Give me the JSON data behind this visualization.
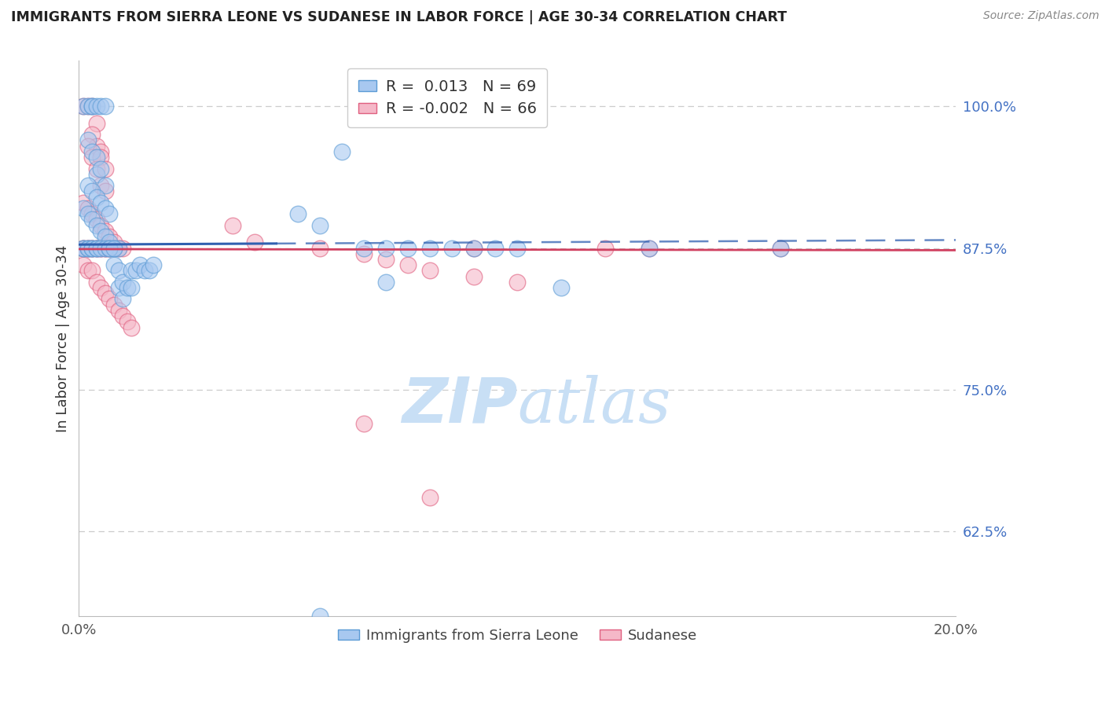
{
  "title": "IMMIGRANTS FROM SIERRA LEONE VS SUDANESE IN LABOR FORCE | AGE 30-34 CORRELATION CHART",
  "source": "Source: ZipAtlas.com",
  "ylabel": "In Labor Force | Age 30-34",
  "xlim": [
    0.0,
    0.2
  ],
  "ylim": [
    0.55,
    1.04
  ],
  "yticks": [
    0.625,
    0.75,
    0.875,
    1.0
  ],
  "ytick_labels": [
    "62.5%",
    "75.0%",
    "87.5%",
    "100.0%"
  ],
  "xtick_labels": [
    "0.0%",
    "20.0%"
  ],
  "xticks": [
    0.0,
    0.2
  ],
  "blue_R": 0.013,
  "blue_N": 69,
  "pink_R": -0.002,
  "pink_N": 66,
  "blue_color": "#a8c8f0",
  "pink_color": "#f5b8c8",
  "blue_edge_color": "#5b9bd5",
  "pink_edge_color": "#e06080",
  "blue_line_color": "#3060b0",
  "pink_line_color": "#d04060",
  "blue_scatter": [
    [
      0.001,
      1.0
    ],
    [
      0.002,
      1.0
    ],
    [
      0.003,
      1.0
    ],
    [
      0.003,
      1.0
    ],
    [
      0.004,
      1.0
    ],
    [
      0.005,
      1.0
    ],
    [
      0.006,
      1.0
    ],
    [
      0.002,
      0.97
    ],
    [
      0.003,
      0.96
    ],
    [
      0.004,
      0.955
    ],
    [
      0.004,
      0.94
    ],
    [
      0.005,
      0.945
    ],
    [
      0.006,
      0.93
    ],
    [
      0.002,
      0.93
    ],
    [
      0.003,
      0.925
    ],
    [
      0.004,
      0.92
    ],
    [
      0.005,
      0.915
    ],
    [
      0.006,
      0.91
    ],
    [
      0.007,
      0.905
    ],
    [
      0.001,
      0.91
    ],
    [
      0.002,
      0.905
    ],
    [
      0.003,
      0.9
    ],
    [
      0.004,
      0.895
    ],
    [
      0.005,
      0.89
    ],
    [
      0.006,
      0.885
    ],
    [
      0.007,
      0.88
    ],
    [
      0.008,
      0.875
    ],
    [
      0.009,
      0.875
    ],
    [
      0.001,
      0.875
    ],
    [
      0.001,
      0.875
    ],
    [
      0.002,
      0.875
    ],
    [
      0.002,
      0.875
    ],
    [
      0.003,
      0.875
    ],
    [
      0.003,
      0.875
    ],
    [
      0.004,
      0.875
    ],
    [
      0.004,
      0.875
    ],
    [
      0.005,
      0.875
    ],
    [
      0.006,
      0.875
    ],
    [
      0.007,
      0.875
    ],
    [
      0.007,
      0.875
    ],
    [
      0.008,
      0.875
    ],
    [
      0.008,
      0.86
    ],
    [
      0.009,
      0.855
    ],
    [
      0.009,
      0.84
    ],
    [
      0.01,
      0.845
    ],
    [
      0.01,
      0.83
    ],
    [
      0.011,
      0.84
    ],
    [
      0.012,
      0.84
    ],
    [
      0.012,
      0.855
    ],
    [
      0.013,
      0.855
    ],
    [
      0.014,
      0.86
    ],
    [
      0.015,
      0.855
    ],
    [
      0.016,
      0.855
    ],
    [
      0.017,
      0.86
    ],
    [
      0.05,
      0.905
    ],
    [
      0.055,
      0.895
    ],
    [
      0.065,
      0.875
    ],
    [
      0.07,
      0.875
    ],
    [
      0.075,
      0.875
    ],
    [
      0.08,
      0.875
    ],
    [
      0.085,
      0.875
    ],
    [
      0.09,
      0.875
    ],
    [
      0.095,
      0.875
    ],
    [
      0.1,
      0.875
    ],
    [
      0.07,
      0.845
    ],
    [
      0.11,
      0.84
    ],
    [
      0.13,
      0.875
    ],
    [
      0.16,
      0.875
    ],
    [
      0.06,
      0.96
    ],
    [
      0.055,
      0.55
    ]
  ],
  "pink_scatter": [
    [
      0.001,
      1.0
    ],
    [
      0.002,
      1.0
    ],
    [
      0.003,
      1.0
    ],
    [
      0.004,
      0.985
    ],
    [
      0.003,
      0.975
    ],
    [
      0.004,
      0.965
    ],
    [
      0.002,
      0.965
    ],
    [
      0.005,
      0.96
    ],
    [
      0.003,
      0.955
    ],
    [
      0.005,
      0.955
    ],
    [
      0.004,
      0.945
    ],
    [
      0.006,
      0.945
    ],
    [
      0.005,
      0.93
    ],
    [
      0.006,
      0.925
    ],
    [
      0.001,
      0.915
    ],
    [
      0.002,
      0.91
    ],
    [
      0.003,
      0.905
    ],
    [
      0.004,
      0.9
    ],
    [
      0.005,
      0.895
    ],
    [
      0.006,
      0.89
    ],
    [
      0.007,
      0.885
    ],
    [
      0.008,
      0.88
    ],
    [
      0.001,
      0.875
    ],
    [
      0.001,
      0.875
    ],
    [
      0.002,
      0.875
    ],
    [
      0.002,
      0.875
    ],
    [
      0.003,
      0.875
    ],
    [
      0.003,
      0.875
    ],
    [
      0.004,
      0.875
    ],
    [
      0.004,
      0.875
    ],
    [
      0.005,
      0.875
    ],
    [
      0.005,
      0.875
    ],
    [
      0.006,
      0.875
    ],
    [
      0.006,
      0.875
    ],
    [
      0.007,
      0.875
    ],
    [
      0.007,
      0.875
    ],
    [
      0.008,
      0.875
    ],
    [
      0.009,
      0.875
    ],
    [
      0.01,
      0.875
    ],
    [
      0.001,
      0.86
    ],
    [
      0.002,
      0.855
    ],
    [
      0.003,
      0.855
    ],
    [
      0.004,
      0.845
    ],
    [
      0.005,
      0.84
    ],
    [
      0.006,
      0.835
    ],
    [
      0.007,
      0.83
    ],
    [
      0.008,
      0.825
    ],
    [
      0.009,
      0.82
    ],
    [
      0.01,
      0.815
    ],
    [
      0.011,
      0.81
    ],
    [
      0.012,
      0.805
    ],
    [
      0.035,
      0.895
    ],
    [
      0.04,
      0.88
    ],
    [
      0.055,
      0.875
    ],
    [
      0.065,
      0.87
    ],
    [
      0.07,
      0.865
    ],
    [
      0.075,
      0.86
    ],
    [
      0.08,
      0.855
    ],
    [
      0.09,
      0.85
    ],
    [
      0.1,
      0.845
    ],
    [
      0.16,
      0.875
    ],
    [
      0.065,
      0.72
    ],
    [
      0.08,
      0.655
    ],
    [
      0.12,
      0.875
    ],
    [
      0.13,
      0.875
    ],
    [
      0.09,
      0.875
    ]
  ],
  "watermark_zip": "ZIP",
  "watermark_atlas": "atlas",
  "watermark_color_zip": "#c8dff5",
  "watermark_color_atlas": "#c8dff5",
  "background_color": "#ffffff",
  "grid_color": "#cccccc"
}
